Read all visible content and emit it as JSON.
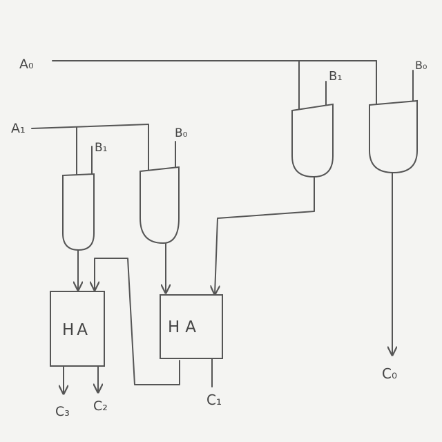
{
  "inputs": {
    "a0": "A₀",
    "a1": "A₁",
    "b0_top": "B₀",
    "b1_top": "B₁",
    "b0_mid": "B₀",
    "b1_mid": "B₁"
  },
  "adders": {
    "left": "HA",
    "right": "HA"
  },
  "outputs": {
    "c0": "C₀",
    "c1": "C₁",
    "c2": "C₂",
    "c3": "C₃"
  }
}
